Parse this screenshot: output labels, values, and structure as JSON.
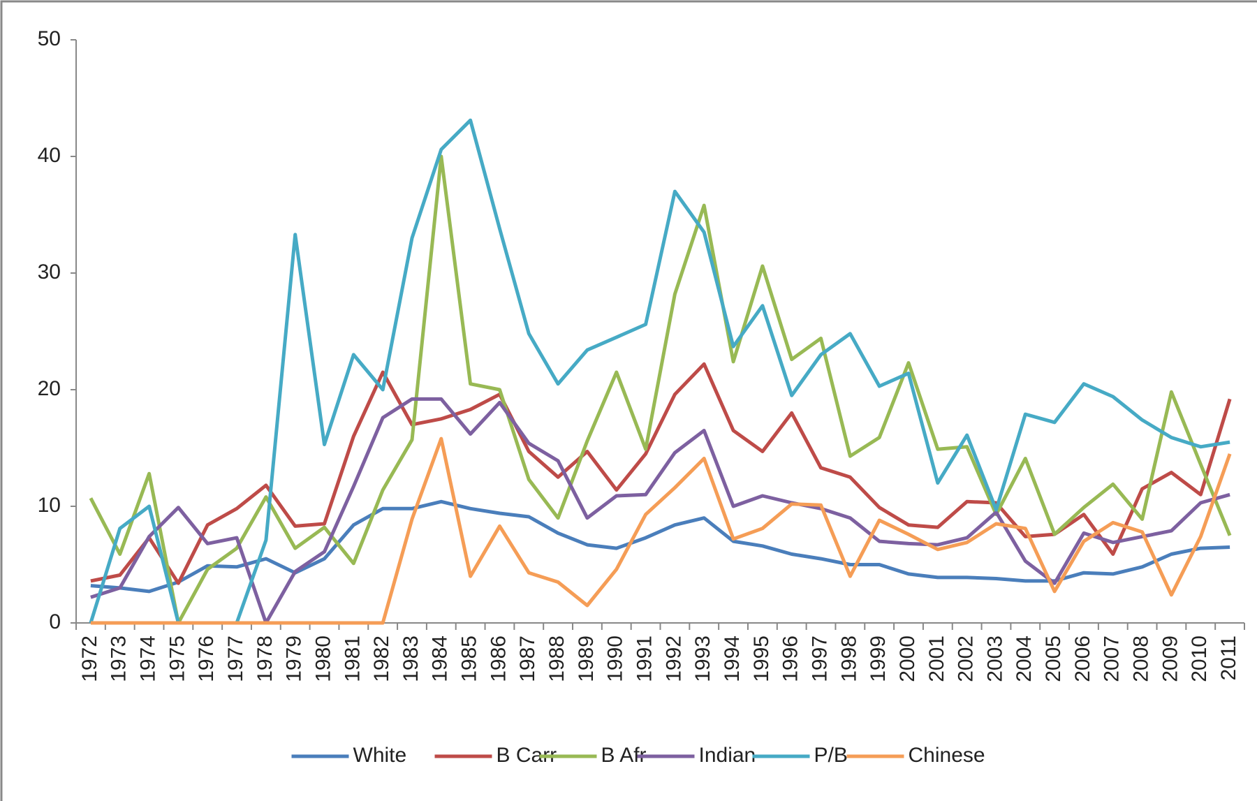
{
  "chart_data": {
    "type": "line",
    "categories": [
      "1972",
      "1973",
      "1974",
      "1975",
      "1976",
      "1977",
      "1978",
      "1979",
      "1980",
      "1981",
      "1982",
      "1983",
      "1984",
      "1985",
      "1986",
      "1987",
      "1988",
      "1989",
      "1990",
      "1991",
      "1992",
      "1993",
      "1994",
      "1995",
      "1996",
      "1997",
      "1998",
      "1999",
      "2000",
      "2001",
      "2002",
      "2003",
      "2004",
      "2005",
      "2006",
      "2007",
      "2008",
      "2009",
      "2010",
      "2011"
    ],
    "series": [
      {
        "name": "White",
        "color": "#4a7ebb",
        "values": [
          3.2,
          3.0,
          2.7,
          3.5,
          4.9,
          4.8,
          5.5,
          4.3,
          5.5,
          8.4,
          9.8,
          9.8,
          10.4,
          9.8,
          9.4,
          9.1,
          7.7,
          6.7,
          6.4,
          7.3,
          8.4,
          9.0,
          7.0,
          6.6,
          5.9,
          5.5,
          5.0,
          5.0,
          4.2,
          3.9,
          3.9,
          3.8,
          3.6,
          3.6,
          4.3,
          4.2,
          4.8,
          5.9,
          6.4,
          6.5
        ]
      },
      {
        "name": "B Carr",
        "color": "#be4b48",
        "values": [
          3.6,
          4.1,
          7.3,
          3.4,
          8.4,
          9.8,
          11.8,
          8.3,
          8.5,
          16.0,
          21.5,
          17.0,
          17.5,
          18.3,
          19.6,
          14.7,
          12.5,
          14.7,
          11.4,
          14.5,
          19.6,
          22.2,
          16.5,
          14.7,
          18.0,
          13.3,
          12.5,
          9.9,
          8.4,
          8.2,
          10.4,
          10.3,
          7.4,
          7.6,
          9.3,
          5.9,
          11.5,
          12.9,
          11.0,
          19.2
        ]
      },
      {
        "name": "B Afr",
        "color": "#98b954",
        "values": [
          10.7,
          5.9,
          12.8,
          0,
          4.6,
          6.4,
          10.8,
          6.4,
          8.2,
          5.1,
          11.4,
          15.7,
          40,
          20.5,
          20.0,
          12.3,
          9.0,
          15.6,
          21.5,
          14.9,
          28.2,
          35.8,
          22.4,
          30.6,
          22.6,
          24.4,
          14.3,
          15.9,
          22.3,
          14.9,
          15.1,
          9.3,
          14.1,
          7.6,
          9.9,
          11.9,
          8.9,
          19.8,
          13.6,
          7.5
        ]
      },
      {
        "name": "Indian",
        "color": "#7d60a0",
        "values": [
          2.2,
          3.0,
          7.4,
          9.9,
          6.8,
          7.3,
          0,
          4.4,
          6.1,
          11.7,
          17.6,
          19.2,
          19.2,
          16.2,
          18.9,
          15.4,
          13.9,
          9.0,
          10.9,
          11.0,
          14.6,
          16.5,
          10.0,
          10.9,
          10.3,
          9.8,
          9.0,
          7.0,
          6.8,
          6.7,
          7.3,
          9.5,
          5.3,
          3.4,
          7.7,
          6.9,
          7.4,
          7.9,
          10.3,
          11.0
        ]
      },
      {
        "name": "P/B",
        "color": "#46aac5",
        "values": [
          0,
          8.1,
          10.0,
          0,
          0,
          0,
          7.1,
          33.3,
          15.3,
          23.0,
          20.0,
          33.0,
          40.6,
          43.1,
          33.8,
          24.8,
          20.5,
          23.4,
          24.5,
          25.6,
          37.0,
          33.5,
          23.7,
          27.2,
          19.5,
          23.0,
          24.8,
          20.3,
          21.4,
          12.0,
          16.1,
          9.7,
          17.9,
          17.2,
          20.5,
          19.4,
          17.4,
          15.9,
          15.1,
          15.5
        ]
      },
      {
        "name": "Chinese",
        "color": "#f59d56",
        "values": [
          0,
          0,
          0,
          0,
          0,
          0,
          0,
          0,
          0,
          0,
          0,
          8.9,
          15.8,
          4.0,
          8.3,
          4.3,
          3.5,
          1.5,
          4.6,
          9.3,
          11.6,
          14.1,
          7.2,
          8.1,
          10.2,
          10.1,
          4.0,
          8.8,
          7.6,
          6.3,
          6.9,
          8.5,
          8.1,
          2.7,
          7.0,
          8.6,
          7.8,
          2.4,
          7.4,
          14.5
        ]
      }
    ],
    "ylim": [
      0,
      50
    ],
    "yticks": [
      0,
      10,
      20,
      30,
      40,
      50
    ],
    "legend": "bottom"
  }
}
